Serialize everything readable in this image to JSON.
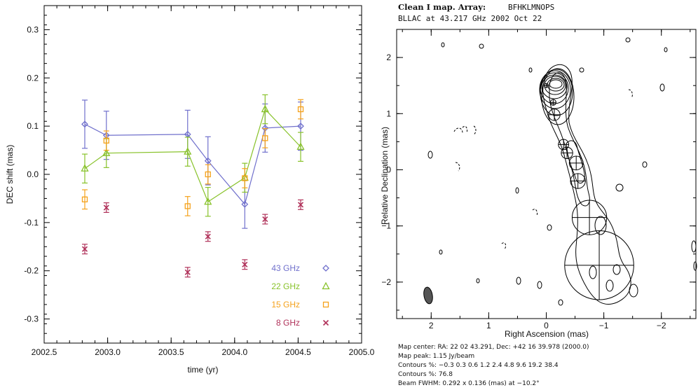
{
  "chart_data": [
    {
      "type": "scatter",
      "xlabel": "time (yr)",
      "ylabel": "DEC shift (mas)",
      "xlim": [
        2002.5,
        2005.0
      ],
      "ylim": [
        -0.35,
        0.35
      ],
      "xticks": [
        "2002.5",
        "2003.0",
        "2003.5",
        "2004.0",
        "2004.5",
        "2005.0"
      ],
      "yticks": [
        "-0.3",
        "-0.2",
        "-0.1",
        "0.0",
        "0.1",
        "0.2",
        "0.3"
      ],
      "legend_position": "bottom-right",
      "series": [
        {
          "name": "43 GHz",
          "color": "#7070cc",
          "marker": "diamond",
          "connected": true,
          "x": [
            2002.82,
            2002.99,
            2003.63,
            2003.79,
            2004.08,
            2004.24,
            2004.52
          ],
          "y": [
            0.104,
            0.081,
            0.083,
            0.028,
            -0.062,
            0.096,
            0.1
          ],
          "err": [
            0.05,
            0.05,
            0.05,
            0.05,
            0.05,
            0.05,
            0.05
          ]
        },
        {
          "name": "22 GHz",
          "color": "#88c22a",
          "marker": "triangle",
          "connected": true,
          "x": [
            2002.82,
            2002.99,
            2003.63,
            2003.79,
            2004.08,
            2004.24,
            2004.52
          ],
          "y": [
            0.012,
            0.044,
            0.047,
            -0.057,
            -0.007,
            0.135,
            0.057
          ],
          "err": [
            0.03,
            0.03,
            0.03,
            0.03,
            0.03,
            0.03,
            0.03
          ]
        },
        {
          "name": "15 GHz",
          "color": "#f5a21b",
          "marker": "square",
          "connected": false,
          "x": [
            2002.82,
            2002.99,
            2003.63,
            2003.79,
            2004.08,
            2004.24,
            2004.52
          ],
          "y": [
            -0.052,
            0.07,
            -0.066,
            0.0,
            -0.008,
            0.075,
            0.135
          ],
          "err": [
            0.02,
            0.02,
            0.02,
            0.02,
            0.02,
            0.02,
            0.02
          ]
        },
        {
          "name": "8 GHz",
          "color": "#b0325a",
          "marker": "x",
          "connected": false,
          "x": [
            2002.82,
            2002.99,
            2003.63,
            2003.79,
            2004.08,
            2004.24,
            2004.52
          ],
          "y": [
            -0.155,
            -0.069,
            -0.203,
            -0.129,
            -0.187,
            -0.093,
            -0.063
          ],
          "err": [
            0.01,
            0.01,
            0.01,
            0.01,
            0.01,
            0.01,
            0.01
          ]
        }
      ]
    },
    {
      "type": "contour-map",
      "title_line1_bold": "Clean I map.  Array:",
      "title_line1_array": "BFHKLMNOPS",
      "title_line2": "BLLAC at 43.217 GHz 2002 Oct 22",
      "xlabel": "Right Ascension  (mas)",
      "ylabel": "Relative Declination  (mas)",
      "xlim": [
        2.6,
        -2.6
      ],
      "ylim": [
        -2.65,
        2.5
      ],
      "xticks": [
        "2",
        "1",
        "0",
        "−1",
        "−2"
      ],
      "yticks": [
        "2",
        "1",
        "0",
        "−1",
        "−2"
      ],
      "info": [
        "Map center:  RA: 22 02 43.291,  Dec: +42 16 39.978 (2000.0)",
        "Map peak: 1.15 Jy/beam",
        "Contours %: −0.3 0.3 0.6 1.2 2.4 4.8 9.6 19.2 38.4",
        "Contours %: 76.8",
        "Beam FWHM: 0.292 x 0.136 (mas) at −10.2°"
      ],
      "components": [
        {
          "x": 0.0,
          "y": 1.5,
          "r": 0.035
        },
        {
          "x": -0.12,
          "y": 1.2,
          "r": 0.05
        },
        {
          "x": -0.14,
          "y": 0.98,
          "r": 0.1
        },
        {
          "x": -0.3,
          "y": 0.45,
          "r": 0.09
        },
        {
          "x": -0.36,
          "y": 0.3,
          "r": 0.1
        },
        {
          "x": -0.52,
          "y": 0.12,
          "r": 0.12
        },
        {
          "x": -0.55,
          "y": -0.2,
          "r": 0.13
        },
        {
          "x": -0.75,
          "y": -0.85,
          "r": 0.3
        },
        {
          "x": -0.92,
          "y": -1.7,
          "r": 0.6
        }
      ]
    }
  ]
}
